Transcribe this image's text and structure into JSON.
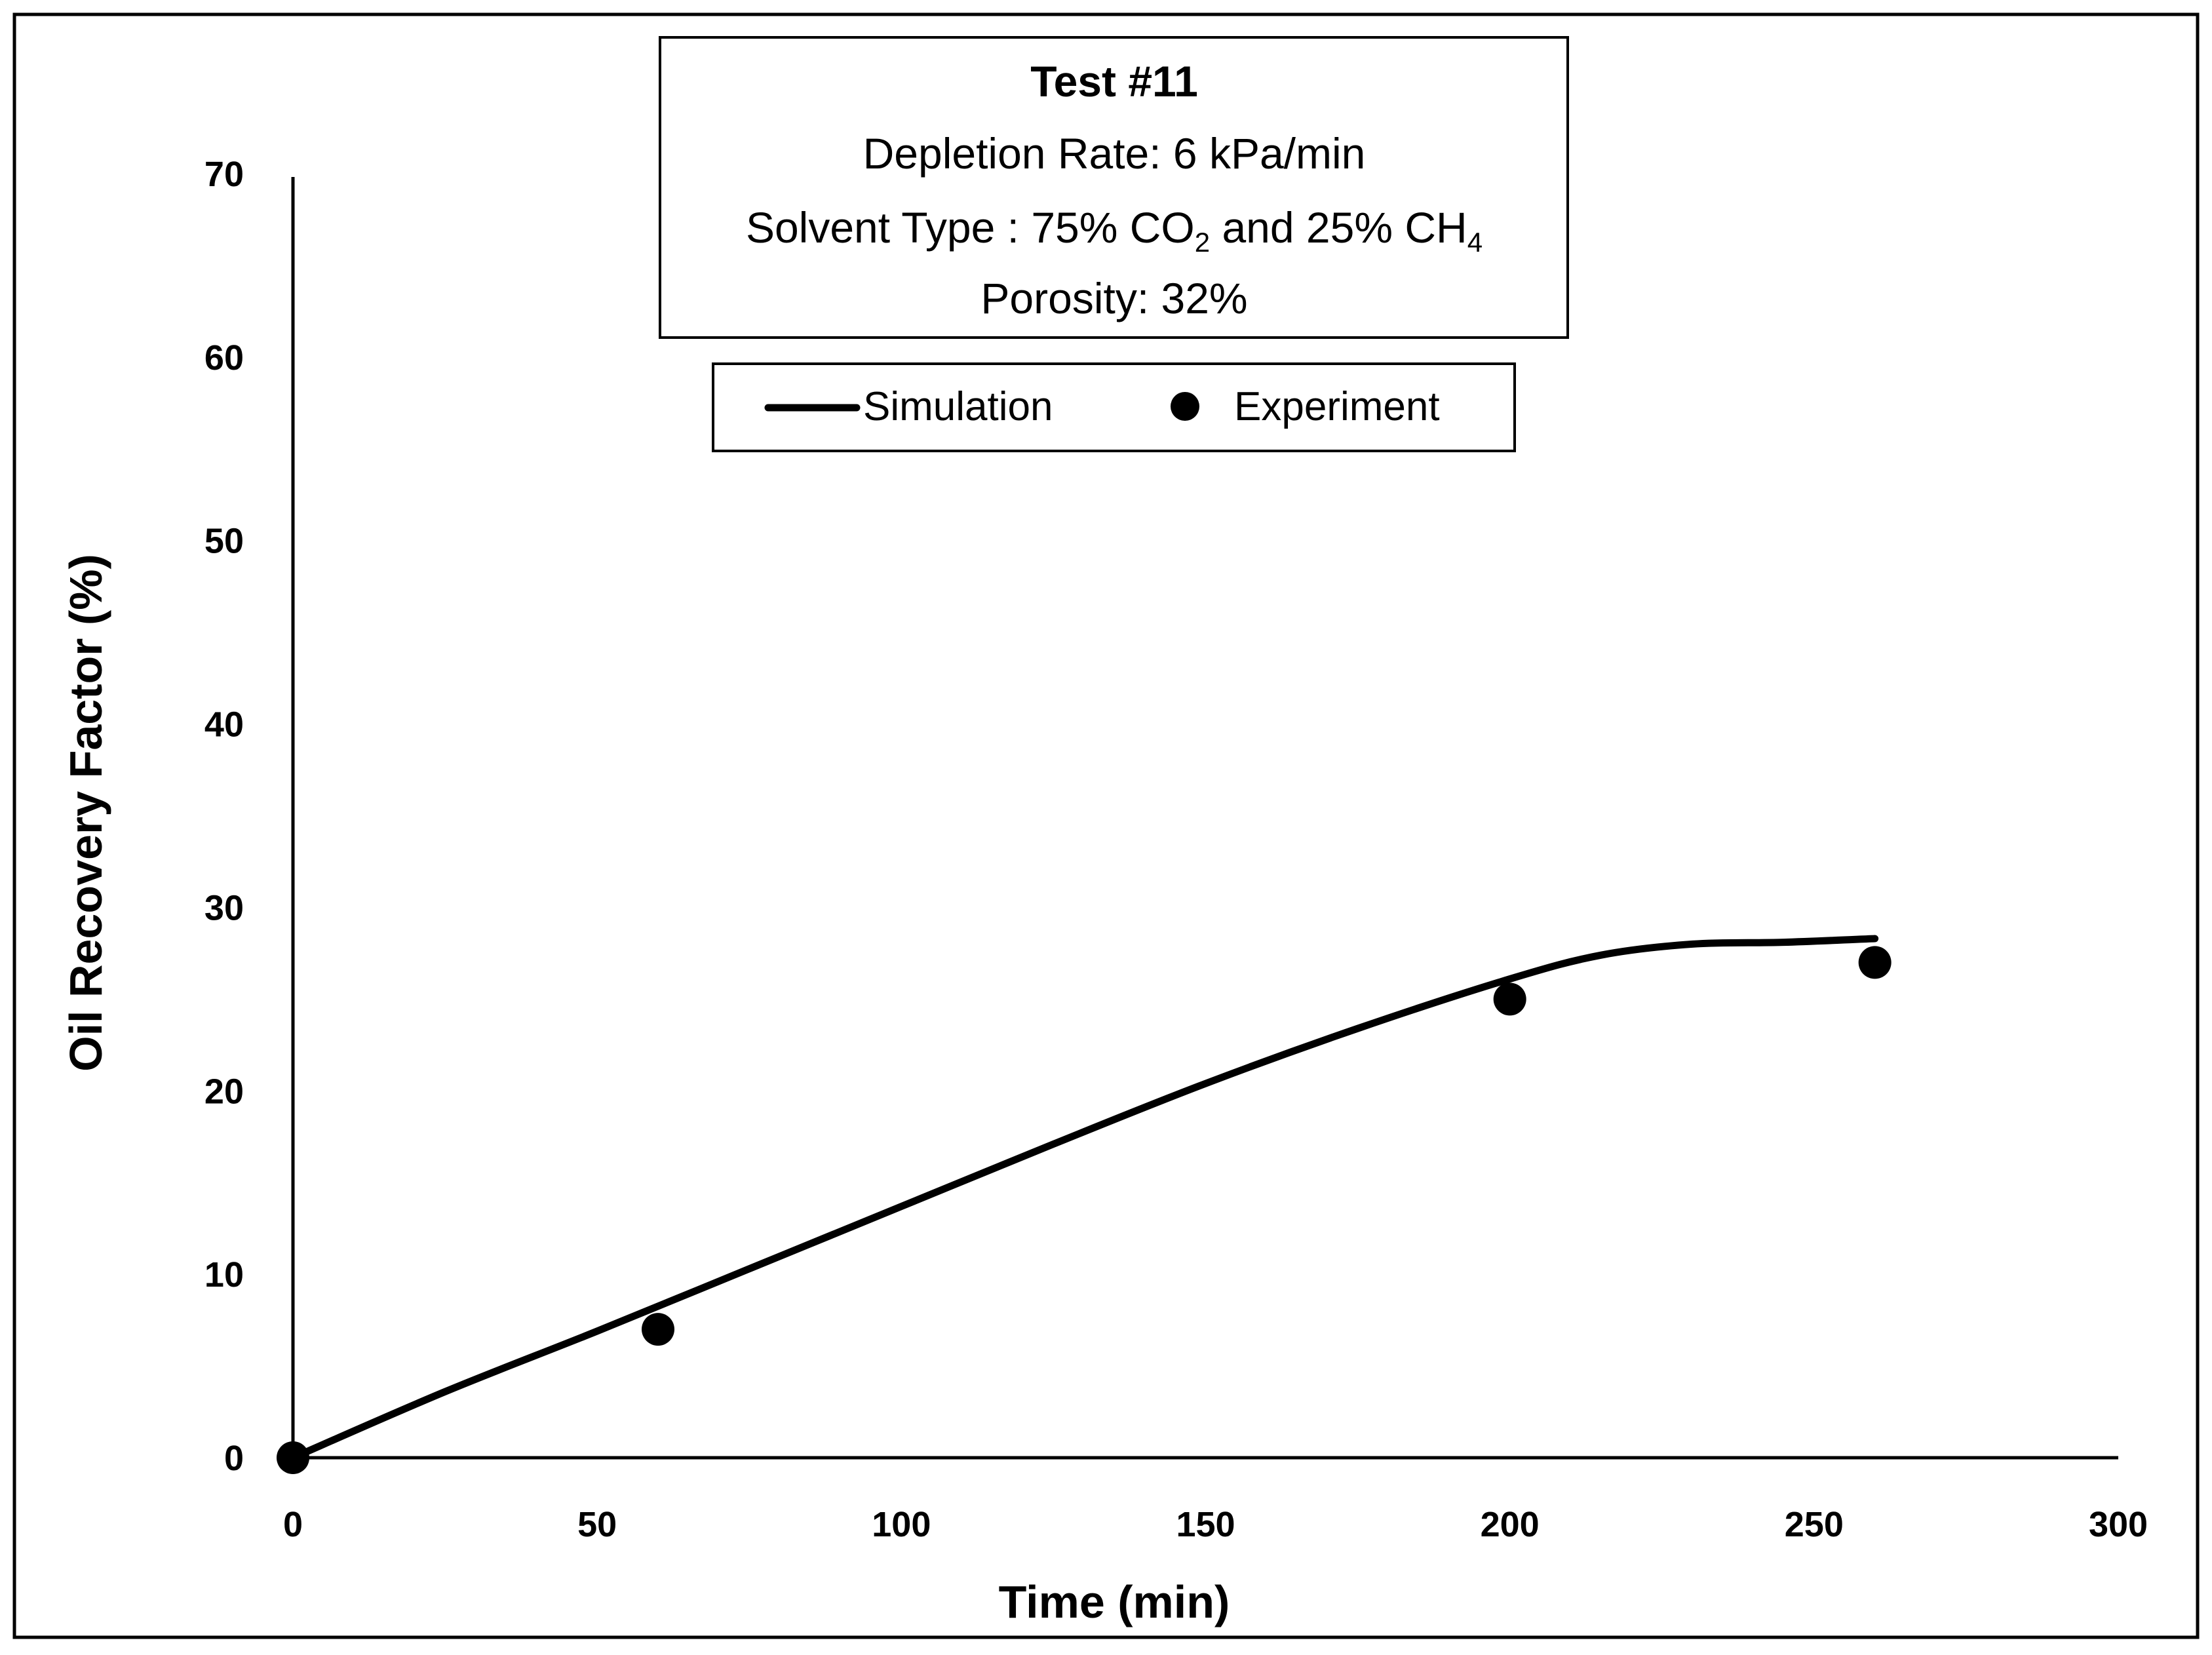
{
  "chart_data": {
    "type": "line",
    "xlabel": "Time (min)",
    "ylabel": "Oil Recovery Factor (%)",
    "xlim": [
      0,
      300
    ],
    "ylim": [
      0,
      70
    ],
    "x_ticks": [
      0,
      50,
      100,
      150,
      200,
      250,
      300
    ],
    "y_ticks": [
      0,
      10,
      20,
      30,
      40,
      50,
      60,
      70
    ],
    "grid": false,
    "legend_position": "top-center",
    "info_box": {
      "title": "Test #11",
      "depletion_rate": "Depletion Rate: 6 kPa/min",
      "solvent_prefix": "Solvent Type : 75% CO",
      "solvent_sub1": "2",
      "solvent_mid": " and 25% CH",
      "solvent_sub2": "4",
      "porosity": "Porosity: 32%"
    },
    "series": [
      {
        "name": "Simulation",
        "style": "line",
        "color": "#000000",
        "x": [
          0,
          25,
          50,
          75,
          100,
          125,
          150,
          175,
          200,
          215,
          230,
          245,
          260
        ],
        "y": [
          0,
          3.6,
          6.9,
          10.3,
          13.7,
          17.1,
          20.4,
          23.4,
          26.1,
          27.4,
          28.0,
          28.1,
          28.3
        ]
      },
      {
        "name": "Experiment",
        "style": "marker",
        "color": "#000000",
        "x": [
          0,
          60,
          200,
          260
        ],
        "y": [
          0,
          7,
          25,
          27
        ]
      }
    ]
  }
}
